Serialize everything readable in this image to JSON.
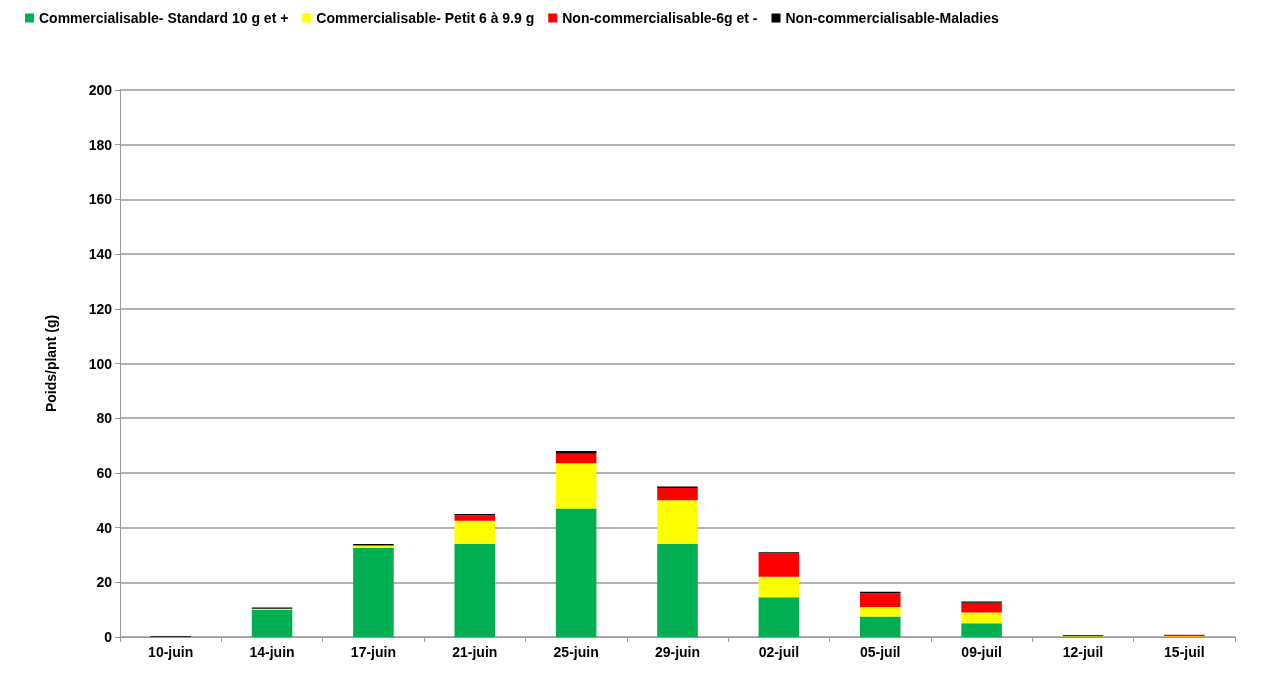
{
  "chart_data": {
    "type": "bar",
    "stacked": true,
    "ylabel": "Poids/plant (g)",
    "categories": [
      "10-juin",
      "14-juin",
      "17-juin",
      "21-juin",
      "25-juin",
      "29-juin",
      "02-juil",
      "05-juil",
      "09-juil",
      "12-juil",
      "15-juil"
    ],
    "series": [
      {
        "name": "Commercialisable- Standard 10 g et +",
        "color": "#00b050",
        "values": [
          0,
          10,
          32.5,
          34,
          47,
          34,
          14.5,
          7.5,
          5,
          0,
          0
        ]
      },
      {
        "name": "Commercialisable- Petit 6 à 9.9 g",
        "color": "#ffff00",
        "values": [
          0,
          0.3,
          1,
          8.5,
          16.5,
          16,
          7.5,
          3.5,
          4,
          0.3,
          0.3
        ]
      },
      {
        "name": "Non-commercialisable-6g et -",
        "color": "#ff0000",
        "values": [
          0,
          0,
          0,
          2,
          3.5,
          4.5,
          8.5,
          5,
          3.5,
          0,
          0.5
        ]
      },
      {
        "name": "Non-commercialisable-Maladies",
        "color": "#000000",
        "values": [
          0.3,
          0.5,
          0.5,
          0.5,
          1,
          0.5,
          0.5,
          0.5,
          0.5,
          0.3,
          0
        ]
      }
    ],
    "ylim": [
      0,
      200
    ],
    "yticks": [
      0,
      20,
      40,
      60,
      80,
      100,
      120,
      140,
      160,
      180,
      200
    ],
    "grid": "y",
    "legend": "top left"
  }
}
